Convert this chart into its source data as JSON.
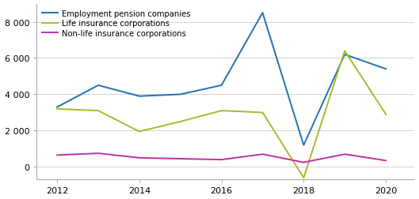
{
  "years": [
    2012,
    2013,
    2014,
    2015,
    2016,
    2017,
    2018,
    2019,
    2020
  ],
  "employment_pension": [
    3300,
    4500,
    3900,
    4000,
    4500,
    8500,
    1200,
    6200,
    5400
  ],
  "life_insurance": [
    3200,
    3100,
    1950,
    2500,
    3100,
    3000,
    -600,
    6400,
    2900
  ],
  "nonlife_insurance": [
    650,
    750,
    500,
    450,
    400,
    700,
    250,
    700,
    350
  ],
  "colors": {
    "employment_pension": "#2070b8",
    "life_insurance": "#a8b830",
    "nonlife_insurance": "#c030a0"
  },
  "legend_labels": [
    "Employment pension companies",
    "Life insurance corporations",
    "Non-life insurance corporations"
  ],
  "ylim": [
    -700,
    9000
  ],
  "yticks": [
    0,
    2000,
    4000,
    6000,
    8000
  ],
  "ytick_labels": [
    "0",
    "2 000",
    "4 000",
    "6 000",
    "8 000"
  ],
  "xlim": [
    2011.5,
    2020.7
  ],
  "xticks": [
    2012,
    2014,
    2016,
    2018,
    2020
  ]
}
